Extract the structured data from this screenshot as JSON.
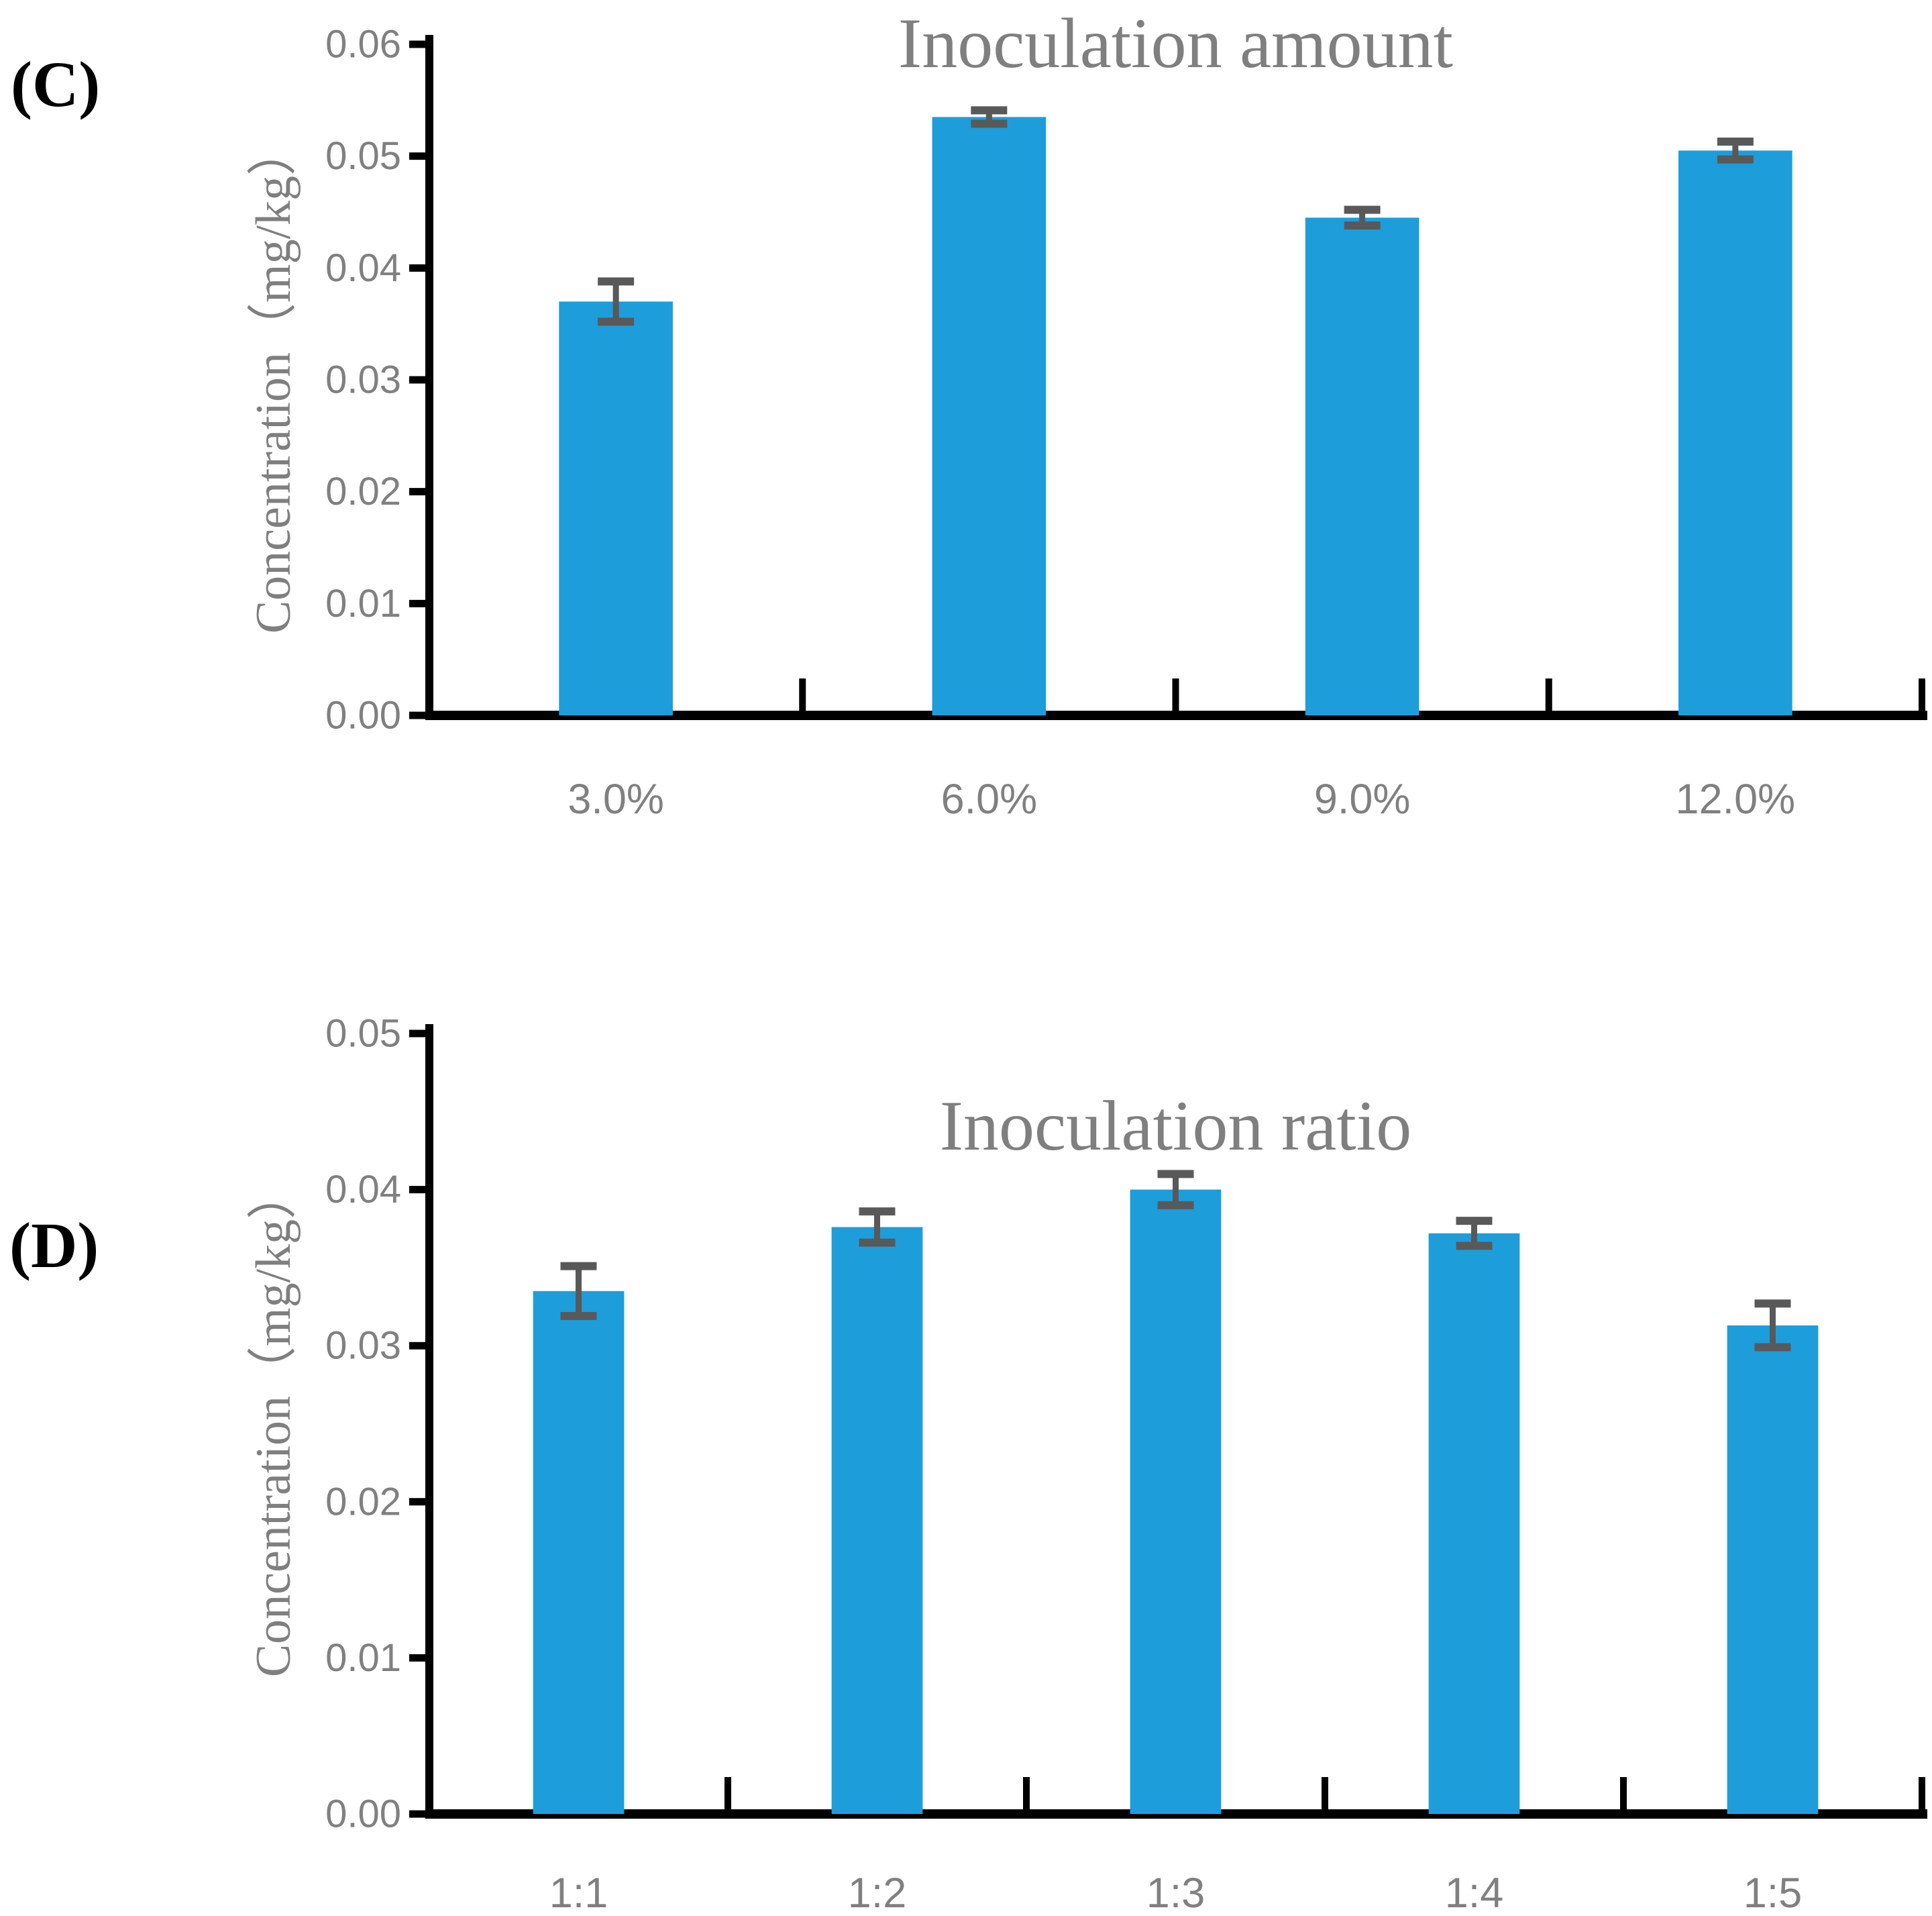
{
  "figure": {
    "background": "#FFFFFF",
    "bar_color": "#1E9DDB",
    "error_color": "#595959",
    "axis_color": "#000000",
    "tick_label_color": "#808080",
    "title_color": "#7F7F7F"
  },
  "chart_data": [
    {
      "type": "bar",
      "panel_label": "(C)",
      "title": "Inoculation amount",
      "ylabel": "Concentration（mg/kg）",
      "xlabel": "",
      "categories": [
        "3.0%",
        "6.0%",
        "9.0%",
        "12.0%"
      ],
      "values": [
        0.037,
        0.0535,
        0.0445,
        0.0505
      ],
      "errors": [
        0.0018,
        0.0006,
        0.0007,
        0.0008
      ],
      "ylim": [
        0,
        0.06
      ],
      "ytick_step": 0.01,
      "ytick_labels": [
        "0.00",
        "0.01",
        "0.02",
        "0.03",
        "0.04",
        "0.05",
        "0.06"
      ],
      "grid": false,
      "legend": null
    },
    {
      "type": "bar",
      "panel_label": "(D)",
      "title": "Inoculation ratio",
      "ylabel": "Concentration（mg/kg）",
      "xlabel": "",
      "categories": [
        "1:1",
        "1:2",
        "1:3",
        "1:4",
        "1:5"
      ],
      "values": [
        0.0335,
        0.0376,
        0.04,
        0.0372,
        0.0313
      ],
      "errors": [
        0.0016,
        0.001,
        0.001,
        0.0008,
        0.0014
      ],
      "ylim": [
        0,
        0.05
      ],
      "ytick_step": 0.01,
      "ytick_labels": [
        "0.00",
        "0.01",
        "0.02",
        "0.03",
        "0.04",
        "0.05"
      ],
      "grid": false,
      "legend": null
    }
  ]
}
